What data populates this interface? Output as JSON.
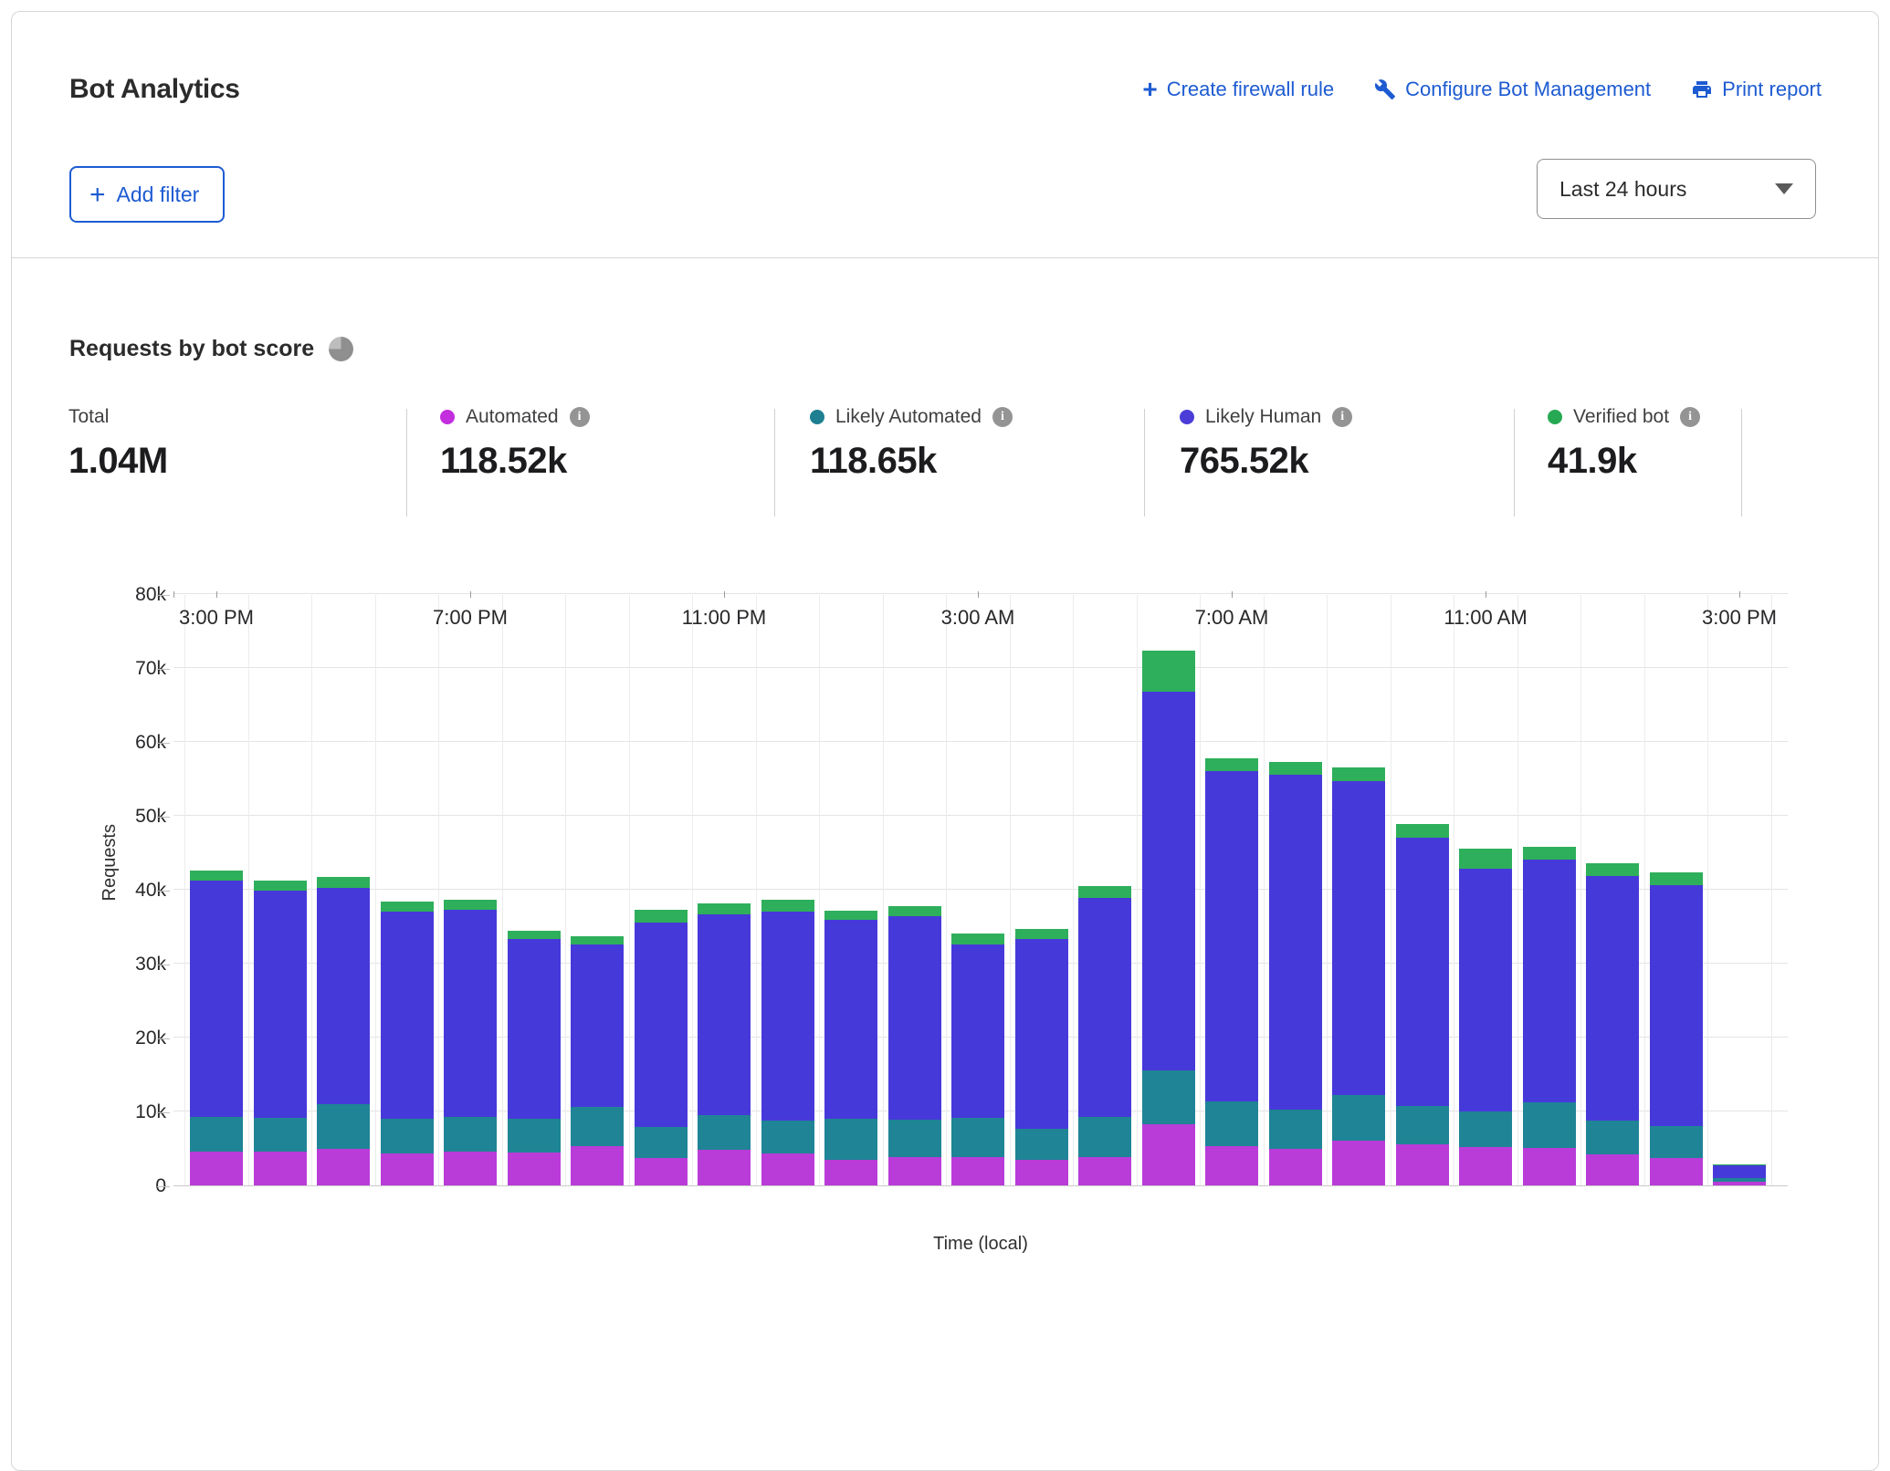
{
  "panel": {
    "title": "Bot Analytics",
    "actions": [
      {
        "label": "Create firewall rule",
        "icon": "plus-icon"
      },
      {
        "label": "Configure Bot Management",
        "icon": "wrench-icon"
      },
      {
        "label": "Print report",
        "icon": "printer-icon"
      }
    ],
    "add_filter_label": "Add filter",
    "time_range_value": "Last 24 hours"
  },
  "section": {
    "title": "Requests by bot score"
  },
  "stats": [
    {
      "label": "Total",
      "value": "1.04M",
      "color": null,
      "info": false
    },
    {
      "label": "Automated",
      "value": "118.52k",
      "color": "#c32ede",
      "info": true
    },
    {
      "label": "Likely Automated",
      "value": "118.65k",
      "color": "#1d7f91",
      "info": true
    },
    {
      "label": "Likely Human",
      "value": "765.52k",
      "color": "#4b3dd8",
      "info": true
    },
    {
      "label": "Verified bot",
      "value": "41.9k",
      "color": "#27a953",
      "info": true
    }
  ],
  "chart_data": {
    "type": "bar",
    "stacked": true,
    "title": "Requests by bot score",
    "xlabel": "Time (local)",
    "ylabel": "Requests",
    "ylim": [
      0,
      80000
    ],
    "ytick_values": [
      0,
      10000,
      20000,
      30000,
      40000,
      50000,
      60000,
      70000,
      80000
    ],
    "ytick_labels": [
      "0",
      "10k",
      "20k",
      "30k",
      "40k",
      "50k",
      "60k",
      "70k",
      "80k"
    ],
    "grid": true,
    "legend_position": "top-stats-row",
    "x": [
      "3:00 PM",
      "4:00 PM",
      "5:00 PM",
      "6:00 PM",
      "7:00 PM",
      "8:00 PM",
      "9:00 PM",
      "10:00 PM",
      "11:00 PM",
      "12:00 AM",
      "1:00 AM",
      "2:00 AM",
      "3:00 AM",
      "4:00 AM",
      "5:00 AM",
      "6:00 AM",
      "7:00 AM",
      "8:00 AM",
      "9:00 AM",
      "10:00 AM",
      "11:00 AM",
      "12:00 PM",
      "1:00 PM",
      "2:00 PM",
      "3:00 PM"
    ],
    "x_tick_indices": [
      0,
      4,
      8,
      12,
      16,
      20,
      24
    ],
    "series": [
      {
        "name": "Automated",
        "color": "#b93cd9",
        "values": [
          4600,
          4600,
          5000,
          4300,
          4600,
          4400,
          5300,
          3700,
          4800,
          4300,
          3500,
          3800,
          3800,
          3400,
          3800,
          8300,
          5300,
          4900,
          6100,
          5500,
          5200,
          5100,
          4200,
          3700,
          500
        ]
      },
      {
        "name": "Likely Automated",
        "color": "#1f8496",
        "values": [
          4700,
          4600,
          6000,
          4700,
          4700,
          4600,
          5300,
          4200,
          4700,
          4500,
          5500,
          5100,
          5300,
          4300,
          5500,
          7200,
          6000,
          5400,
          6100,
          5200,
          4800,
          6100,
          4600,
          4300,
          500
        ]
      },
      {
        "name": "Likely Human",
        "color": "#4639d9",
        "values": [
          32000,
          30700,
          29200,
          28000,
          28000,
          24300,
          22000,
          27700,
          27200,
          28300,
          26900,
          27500,
          23500,
          25600,
          29600,
          51300,
          44700,
          45200,
          42500,
          36300,
          32900,
          32900,
          33100,
          32600,
          1700
        ]
      },
      {
        "name": "Verified bot",
        "color": "#2eaf5b",
        "values": [
          1300,
          1300,
          1500,
          1400,
          1400,
          1100,
          1100,
          1700,
          1400,
          1500,
          1300,
          1400,
          1500,
          1400,
          1600,
          5600,
          1800,
          1800,
          1800,
          1900,
          2700,
          1700,
          1700,
          1800,
          100
        ]
      }
    ]
  }
}
